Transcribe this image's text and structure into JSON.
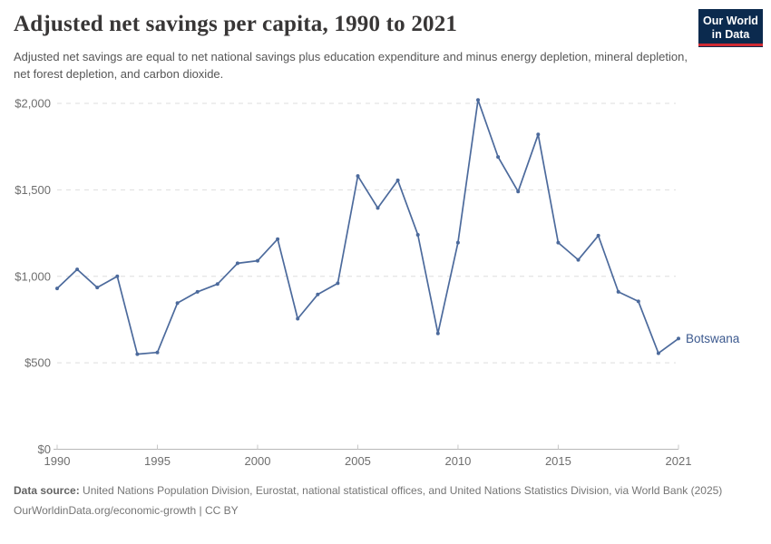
{
  "header": {
    "title": "Adjusted net savings per capita, 1990 to 2021",
    "subtitle": "Adjusted net savings are equal to net national savings plus education expenditure and minus energy depletion, mineral depletion, net forest depletion, and carbon dioxide.",
    "logo": {
      "line1": "Our World",
      "line2": "in Data",
      "bg_color": "#0b2a4e",
      "bar_color": "#cf2a33"
    }
  },
  "chart_data": {
    "type": "line",
    "title": "Adjusted net savings per capita, 1990 to 2021",
    "xlabel": "",
    "ylabel": "",
    "xlim": [
      1990,
      2021
    ],
    "ylim": [
      0,
      2000
    ],
    "grid": "horizontal-dashed",
    "x_ticks": [
      1990,
      1995,
      2000,
      2005,
      2010,
      2015,
      2021
    ],
    "y_ticks": [
      0,
      500,
      1000,
      1500,
      2000
    ],
    "y_tick_labels": [
      "$0",
      "$500",
      "$1,000",
      "$1,500",
      "$2,000"
    ],
    "x": [
      1990,
      1991,
      1992,
      1993,
      1994,
      1995,
      1996,
      1997,
      1998,
      1999,
      2000,
      2001,
      2002,
      2003,
      2004,
      2005,
      2006,
      2007,
      2008,
      2009,
      2010,
      2011,
      2012,
      2013,
      2014,
      2015,
      2016,
      2017,
      2018,
      2019,
      2020,
      2021
    ],
    "series": [
      {
        "name": "Botswana",
        "color": "#4c6a9c",
        "label_color": "#3d5a8f",
        "values": [
          930,
          1040,
          935,
          1000,
          550,
          560,
          845,
          910,
          955,
          1075,
          1090,
          1215,
          755,
          895,
          960,
          1580,
          1395,
          1555,
          1240,
          670,
          1195,
          2020,
          1690,
          1490,
          1820,
          1195,
          1095,
          1235,
          910,
          855,
          555,
          640
        ]
      }
    ],
    "legend_position": "end-of-line",
    "style": {
      "grid_color": "#dddddd",
      "axis_color": "#b8b8b8",
      "tick_color": "#c8c8c8",
      "tick_label_color": "#6e6e6e"
    }
  },
  "footer": {
    "source_label": "Data source:",
    "source_text": "United Nations Population Division, Eurostat, national statistical offices, and United Nations Statistics Division, via World Bank (2025)",
    "link_line": "OurWorldinData.org/economic-growth | CC BY"
  }
}
